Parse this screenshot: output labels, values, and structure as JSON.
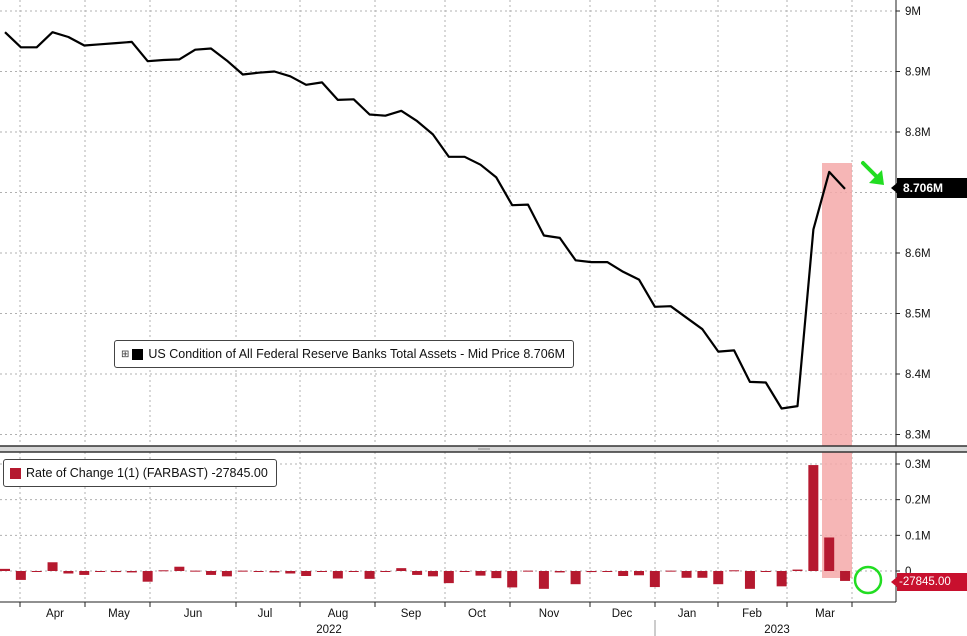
{
  "colors": {
    "line": "#000000",
    "bars": "#b5192f",
    "highlight": "#f4a9a9",
    "arrow": "#22dd22",
    "circle": "#22dd22",
    "last_tag_bg": "#000000",
    "roc_tag_bg": "#c8102e"
  },
  "legend_main": {
    "icon": "expand-plus-icon",
    "text": "US Condition of All Federal Reserve Banks Total Assets - Mid Price 8.706M"
  },
  "legend_roc": {
    "text": "Rate of Change 1(1) (FARBAST) -27845.00"
  },
  "last_value_tag": "8.706M",
  "roc_value_tag": "-27845.00",
  "chart_data": [
    {
      "type": "line",
      "series": [
        {
          "name": "US Condition of All Federal Reserve Banks Total Assets - Mid Price",
          "values": [
            8.965,
            8.94,
            8.94,
            8.965,
            8.957,
            8.943,
            8.945,
            8.947,
            8.949,
            8.917,
            8.919,
            8.92,
            8.936,
            8.938,
            8.918,
            8.895,
            8.898,
            8.9,
            8.892,
            8.878,
            8.882,
            8.853,
            8.854,
            8.829,
            8.827,
            8.835,
            8.818,
            8.796,
            8.759,
            8.759,
            8.746,
            8.725,
            8.679,
            8.68,
            8.629,
            8.625,
            8.588,
            8.585,
            8.585,
            8.569,
            8.556,
            8.511,
            8.512,
            8.493,
            8.474,
            8.437,
            8.439,
            8.387,
            8.386,
            8.343,
            8.347,
            8.639,
            8.734,
            8.706
          ]
        }
      ],
      "x_axis_months": [
        "Apr",
        "May",
        "Jun",
        "Jul",
        "Aug",
        "Sep",
        "Oct",
        "Nov",
        "Dec",
        "Jan",
        "Feb",
        "Mar"
      ],
      "x_axis_years": [
        "2022",
        "2023"
      ],
      "y_ticks": [
        "9M",
        "8.9M",
        "8.8M",
        "8.7M",
        "8.6M",
        "8.5M",
        "8.4M",
        "8.3M"
      ],
      "ylim": [
        8.27,
        9.0
      ],
      "grid": true,
      "last_value": 8.706
    },
    {
      "type": "bar",
      "series": [
        {
          "name": "Rate of Change 1(1) (FARBAST)",
          "values": [
            6000,
            -25000,
            0,
            24500,
            -7000,
            -11000,
            0,
            -3000,
            -4000,
            -30000,
            2000,
            12000,
            1000,
            -11000,
            -15000,
            1000,
            -2000,
            -4000,
            -7000,
            -14000,
            -500,
            -21000,
            -2000,
            -22000,
            -2000,
            8000,
            -11000,
            -15000,
            -34000,
            -1000,
            -13000,
            -20000,
            -46000,
            1000,
            -50000,
            -4000,
            -37000,
            -3000,
            0,
            -14000,
            -12000,
            -45000,
            1000,
            -19000,
            -19000,
            -37000,
            2000,
            -50000,
            -1000,
            -43000,
            4000,
            297000,
            94000,
            -27845
          ]
        }
      ],
      "y_ticks": [
        "0.3M",
        "0.2M",
        "0.1M",
        "0"
      ],
      "ylim": [
        -90000,
        350000
      ],
      "last_value": -27845
    }
  ]
}
